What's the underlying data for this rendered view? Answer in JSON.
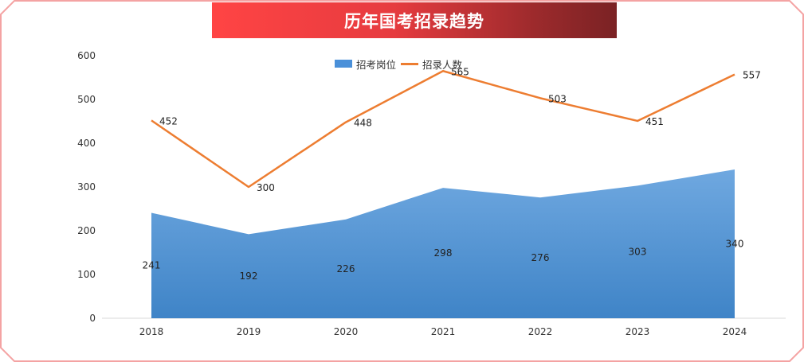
{
  "page": {
    "title": "历年国考招录趋势"
  },
  "colors": {
    "banner_start": "#ff4444",
    "banner_end": "#7a2224",
    "area_top": "#6fa8e0",
    "area_bottom": "#3f84c7",
    "line": "#ed7d31",
    "frame_border": "#f4a3a3"
  },
  "chart_data": {
    "type": "area",
    "title": "历年国考招录趋势",
    "categories": [
      "2018",
      "2019",
      "2020",
      "2021",
      "2022",
      "2023",
      "2024"
    ],
    "ylim": [
      0,
      600
    ],
    "yticks": [
      "0",
      "100",
      "200",
      "300",
      "400",
      "500",
      "600"
    ],
    "legend_position": "top-center",
    "grid": false,
    "series": [
      {
        "name": "招考岗位",
        "type": "area",
        "values": [
          241,
          192,
          226,
          298,
          276,
          303,
          340
        ]
      },
      {
        "name": "招录人数",
        "type": "line",
        "values": [
          452,
          300,
          448,
          565,
          503,
          451,
          557
        ]
      }
    ]
  }
}
